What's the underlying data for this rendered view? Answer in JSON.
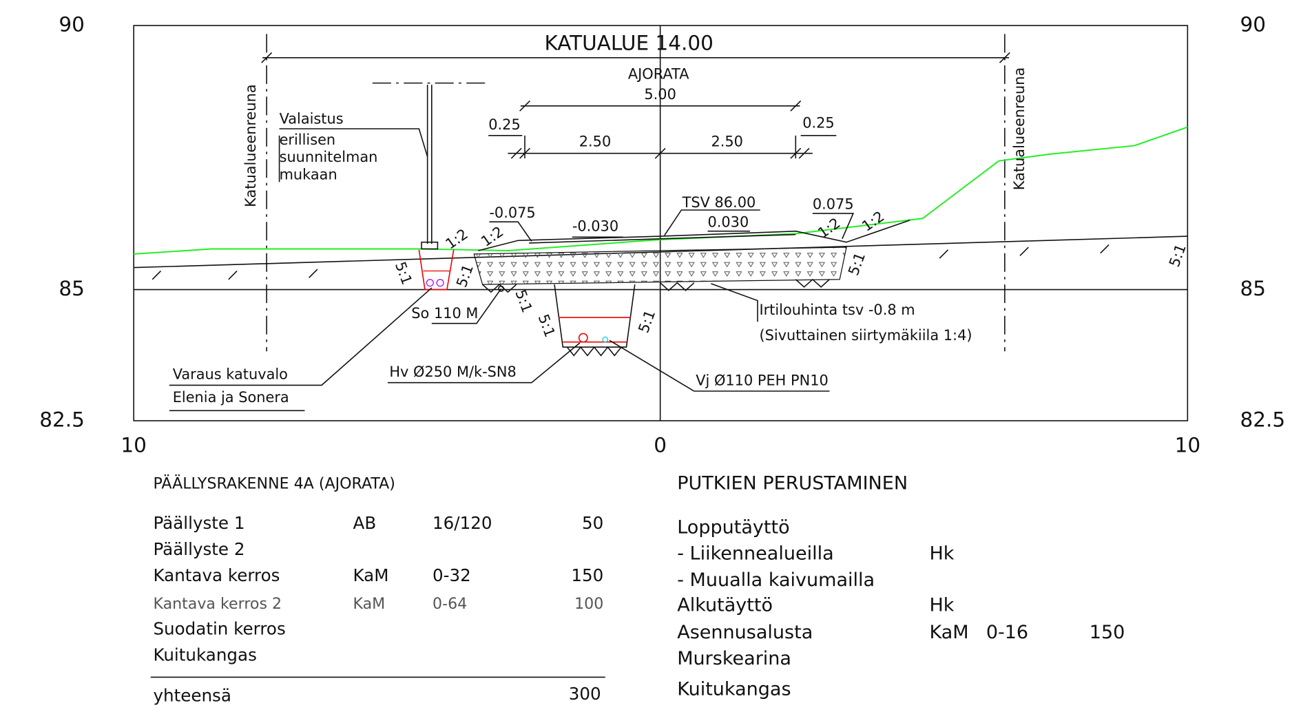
{
  "axes": {
    "left": [
      "90",
      "85",
      "82.5"
    ],
    "right": [
      "90",
      "85",
      "82.5"
    ],
    "bottom": [
      "10",
      "0",
      "10"
    ]
  },
  "drawing": {
    "street_area": "KATUALUE 14.00",
    "roadway": "AJORATA",
    "roadway_width": "5.00",
    "dims": [
      "0.25",
      "2.50",
      "2.50",
      "0.25"
    ],
    "edge_left": "Katualueenreuna",
    "edge_right": "Katualueenreuna",
    "lighting": [
      "Valaistus",
      "erillisen",
      "suunnitelman",
      "mukaan"
    ],
    "slopes_top": [
      "-0.075",
      "-0.030",
      "TSV 86.00",
      "0.030",
      "0.075"
    ],
    "ratios_12": [
      "1:2",
      "1:2",
      "1:2",
      "1:2"
    ],
    "ratios_51": [
      "5:1",
      "5:1",
      "5:1",
      "5:1",
      "5:1",
      "5:1",
      "5:1"
    ],
    "drain": "So 110 M",
    "excavation": [
      "Irtilouhinta tsv -0.8 m",
      "(Sivuttainen siirtymäkiila 1:4)"
    ],
    "reservation": [
      "Varaus katuvalo",
      "Elenia ja Sonera"
    ],
    "sewer": "Hv Ø250 M/k-SN8",
    "water": "Vj Ø110 PEH PN10"
  },
  "pavement": {
    "title": "PÄÄLLYSRAKENNE  4A (AJORATA)",
    "rows": [
      [
        "Päällyste 1",
        "AB",
        "16/120",
        "50"
      ],
      [
        "Päällyste 2"
      ],
      [
        "Kantava kerros",
        "KaM",
        "0-32",
        "150"
      ],
      [
        "Kantava kerros 2",
        "KaM",
        "0-64",
        "100"
      ],
      [
        "Suodatin kerros"
      ],
      [
        "Kuitukangas"
      ]
    ],
    "total": [
      "yhteensä",
      "300"
    ]
  },
  "pipes": {
    "title": "PUTKIEN PERUSTAMINEN",
    "rows": [
      [
        "Lopputäyttö"
      ],
      [
        "- Liikennealueilla",
        "Hk"
      ],
      [
        "- Muualla kaivumailla"
      ],
      [
        "Alkutäyttö",
        "Hk"
      ],
      [
        "Asennusalusta",
        "KaM",
        "0-16",
        "150"
      ],
      [
        "Murskearina"
      ],
      [
        "Kuitukangas"
      ]
    ]
  }
}
